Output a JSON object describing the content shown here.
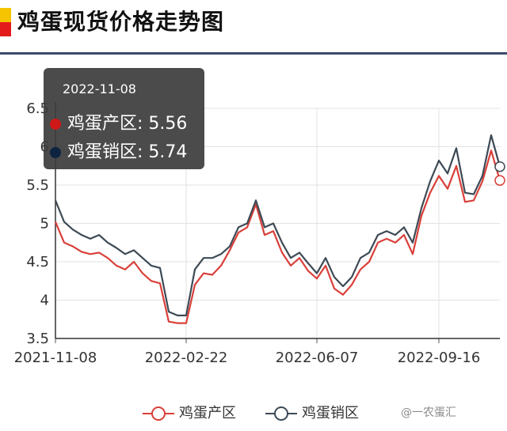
{
  "header": {
    "title": "鸡蛋现货价格走势图"
  },
  "tooltip": {
    "date": "2022-11-08",
    "rows": [
      {
        "label": "鸡蛋产区: 5.56",
        "color": "#d01818"
      },
      {
        "label": "鸡蛋销区: 5.74",
        "color": "#0d2340"
      }
    ]
  },
  "watermark": "@一农蛋汇",
  "chart_data": {
    "type": "line",
    "title": "",
    "xlabel": "",
    "ylabel": "",
    "ylim": [
      3.5,
      6.5
    ],
    "yticks": [
      "3.5",
      "4",
      "4.5",
      "5",
      "5.5",
      "6",
      "6.5"
    ],
    "xticks": [
      "2021-11-08",
      "2022-02-22",
      "2022-06-07",
      "2022-09-16"
    ],
    "x": [
      "2021-11-08",
      "2021-11-15",
      "2021-11-22",
      "2021-11-29",
      "2021-12-06",
      "2021-12-13",
      "2021-12-20",
      "2021-12-27",
      "2022-01-03",
      "2022-01-10",
      "2022-01-17",
      "2022-01-24",
      "2022-01-31",
      "2022-02-07",
      "2022-02-14",
      "2022-02-22",
      "2022-03-01",
      "2022-03-08",
      "2022-03-15",
      "2022-03-22",
      "2022-03-29",
      "2022-04-05",
      "2022-04-12",
      "2022-04-19",
      "2022-04-26",
      "2022-05-03",
      "2022-05-10",
      "2022-05-17",
      "2022-05-24",
      "2022-05-31",
      "2022-06-07",
      "2022-06-14",
      "2022-06-21",
      "2022-06-28",
      "2022-07-05",
      "2022-07-12",
      "2022-07-19",
      "2022-07-26",
      "2022-08-02",
      "2022-08-09",
      "2022-08-16",
      "2022-08-23",
      "2022-08-30",
      "2022-09-06",
      "2022-09-16",
      "2022-09-23",
      "2022-09-30",
      "2022-10-07",
      "2022-10-14",
      "2022-10-21",
      "2022-10-28",
      "2022-11-08"
    ],
    "series": [
      {
        "name": "鸡蛋产区",
        "color": "#d9403a",
        "values": [
          5.02,
          4.75,
          4.7,
          4.63,
          4.6,
          4.62,
          4.55,
          4.45,
          4.4,
          4.5,
          4.35,
          4.25,
          4.22,
          3.72,
          3.7,
          3.7,
          4.2,
          4.35,
          4.33,
          4.45,
          4.65,
          4.88,
          4.95,
          5.25,
          4.85,
          4.9,
          4.62,
          4.45,
          4.55,
          4.38,
          4.28,
          4.45,
          4.15,
          4.07,
          4.2,
          4.4,
          4.5,
          4.75,
          4.8,
          4.75,
          4.85,
          4.6,
          5.1,
          5.4,
          5.62,
          5.45,
          5.75,
          5.28,
          5.3,
          5.55,
          5.95,
          5.56
        ]
      },
      {
        "name": "鸡蛋销区",
        "color": "#3d4a55",
        "values": [
          5.3,
          5.02,
          4.92,
          4.85,
          4.8,
          4.85,
          4.75,
          4.68,
          4.6,
          4.65,
          4.55,
          4.45,
          4.42,
          3.85,
          3.8,
          3.8,
          4.4,
          4.55,
          4.55,
          4.6,
          4.7,
          4.95,
          5.0,
          5.3,
          4.95,
          5.0,
          4.75,
          4.55,
          4.62,
          4.48,
          4.35,
          4.55,
          4.3,
          4.18,
          4.3,
          4.55,
          4.62,
          4.85,
          4.9,
          4.85,
          4.95,
          4.75,
          5.2,
          5.55,
          5.82,
          5.65,
          5.98,
          5.4,
          5.38,
          5.62,
          6.15,
          5.74
        ]
      }
    ]
  }
}
